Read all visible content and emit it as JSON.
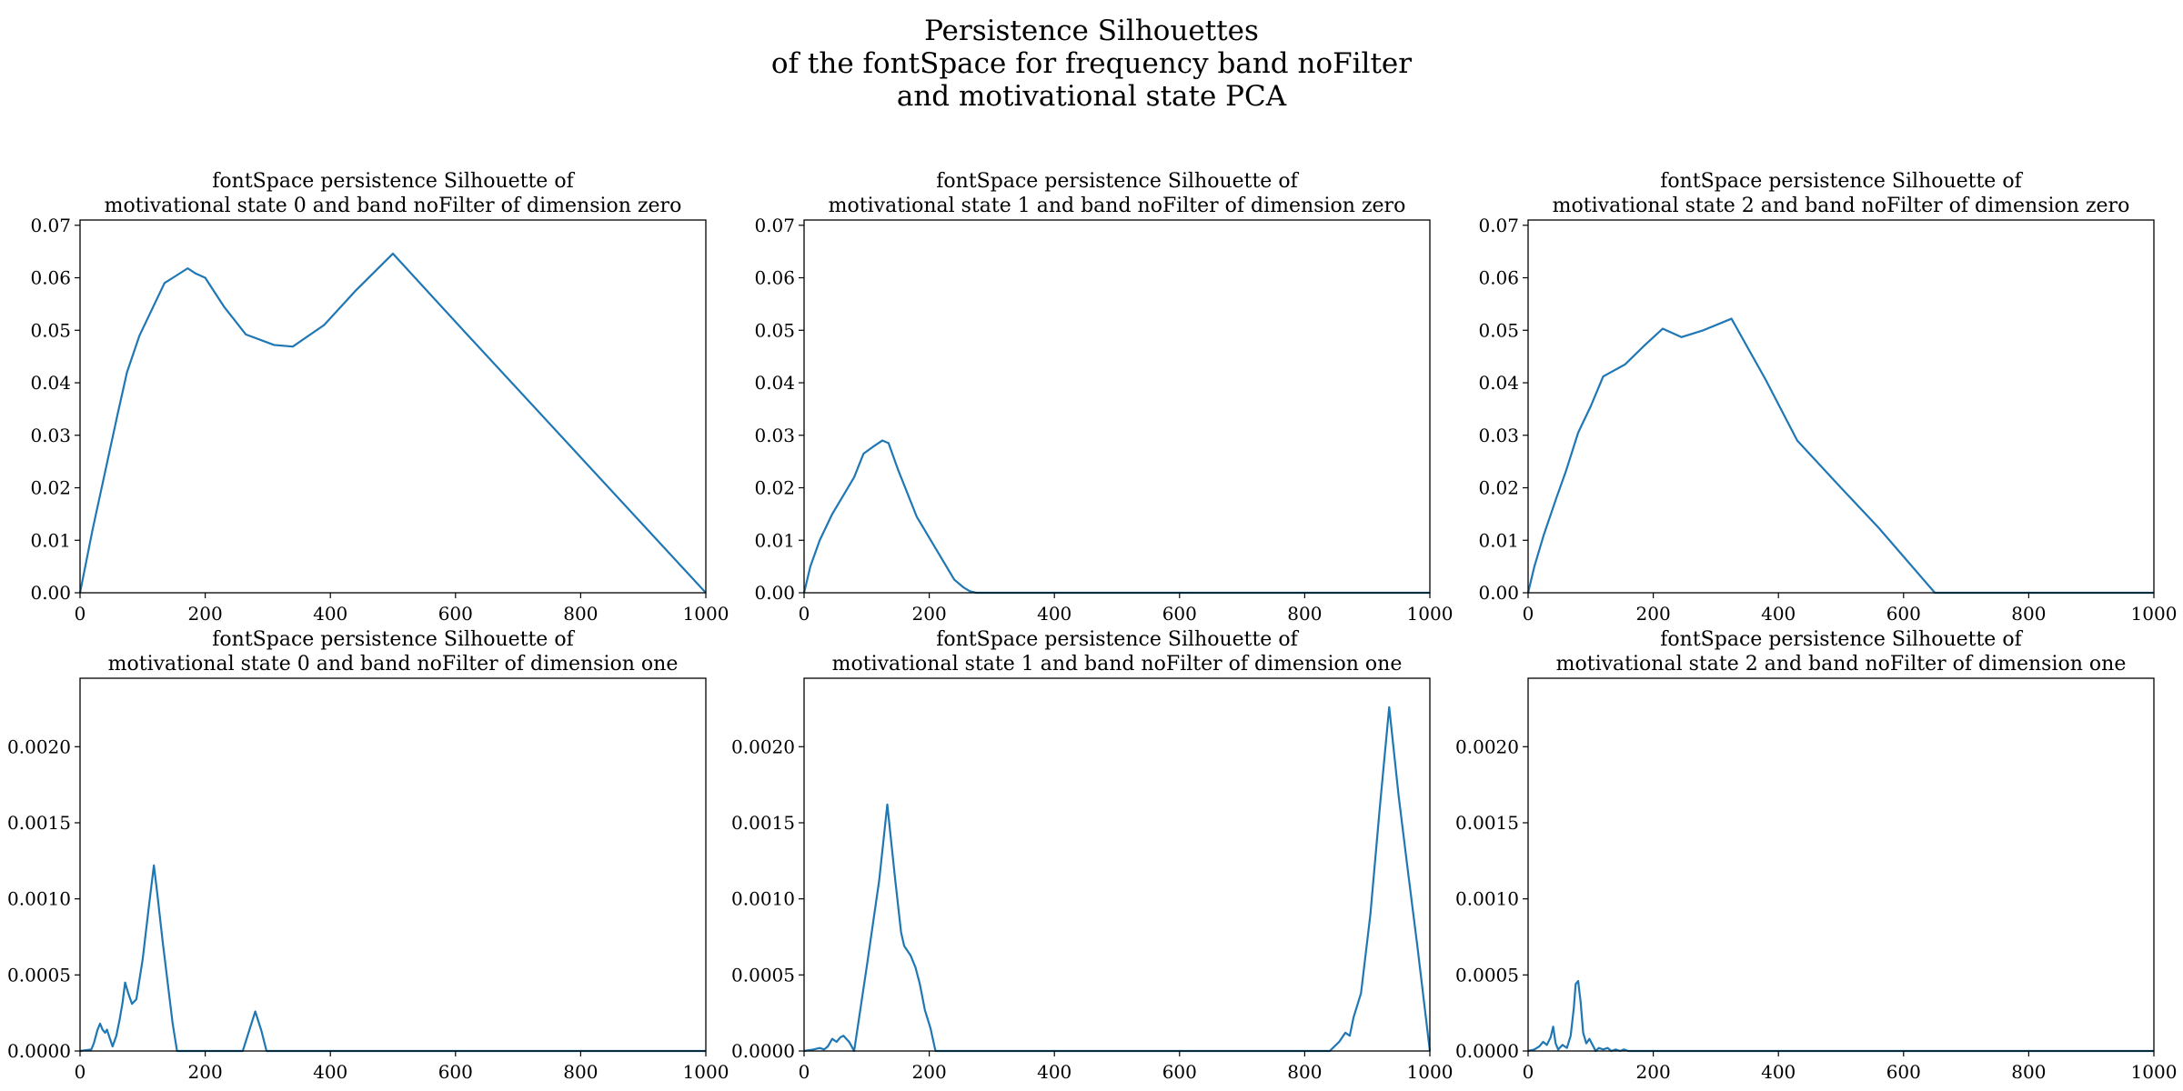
{
  "figure": {
    "title_lines": [
      "Persistence Silhouettes",
      "of the fontSpace for frequency band noFilter",
      "and motivational state PCA"
    ]
  },
  "colors": {
    "line": "#1f77b4",
    "axes": "#000000",
    "background": "#ffffff"
  },
  "chart_data": [
    {
      "type": "line",
      "title_lines": [
        "fontSpace persistence Silhouette of",
        "motivational state 0 and band noFilter of dimension zero"
      ],
      "xlabel": "",
      "ylabel": "",
      "xlim": [
        0,
        1000
      ],
      "ylim": [
        0,
        0.071
      ],
      "xticks": [
        "0",
        "200",
        "400",
        "600",
        "800",
        "1000"
      ],
      "yticks": [
        "0.00",
        "0.01",
        "0.02",
        "0.03",
        "0.04",
        "0.05",
        "0.06",
        "0.07"
      ],
      "grid": false,
      "series": [
        {
          "x": [
            0,
            20,
            40,
            60,
            75,
            95,
            115,
            135,
            155,
            172,
            185,
            200,
            230,
            265,
            310,
            340,
            390,
            440,
            500,
            550,
            600,
            700,
            800,
            900,
            1000
          ],
          "y": [
            0,
            0.012,
            0.023,
            0.034,
            0.042,
            0.049,
            0.054,
            0.059,
            0.0605,
            0.0618,
            0.0608,
            0.06,
            0.0545,
            0.0492,
            0.0472,
            0.0469,
            0.051,
            0.0575,
            0.0646,
            0.0581,
            0.0516,
            0.0387,
            0.0258,
            0.0129,
            0
          ]
        }
      ]
    },
    {
      "type": "line",
      "title_lines": [
        "fontSpace persistence Silhouette of",
        "motivational state 1 and band noFilter of dimension zero"
      ],
      "xlabel": "",
      "ylabel": "",
      "xlim": [
        0,
        1000
      ],
      "ylim": [
        0,
        0.071
      ],
      "xticks": [
        "0",
        "200",
        "400",
        "600",
        "800",
        "1000"
      ],
      "yticks": [
        "0.00",
        "0.01",
        "0.02",
        "0.03",
        "0.04",
        "0.05",
        "0.06",
        "0.07"
      ],
      "grid": false,
      "series": [
        {
          "x": [
            0,
            10,
            25,
            45,
            65,
            80,
            95,
            110,
            125,
            135,
            150,
            180,
            210,
            240,
            255,
            265,
            275,
            350,
            500,
            700,
            1000
          ],
          "y": [
            0,
            0.005,
            0.01,
            0.015,
            0.019,
            0.022,
            0.0265,
            0.0278,
            0.029,
            0.0285,
            0.0235,
            0.0145,
            0.0085,
            0.0025,
            0.001,
            0.0003,
            0,
            0,
            0,
            0,
            0
          ]
        }
      ]
    },
    {
      "type": "line",
      "title_lines": [
        "fontSpace persistence Silhouette of",
        "motivational state 2 and band noFilter of dimension zero"
      ],
      "xlabel": "",
      "ylabel": "",
      "xlim": [
        0,
        1000
      ],
      "ylim": [
        0,
        0.071
      ],
      "xticks": [
        "0",
        "200",
        "400",
        "600",
        "800",
        "1000"
      ],
      "yticks": [
        "0.00",
        "0.01",
        "0.02",
        "0.03",
        "0.04",
        "0.05",
        "0.06",
        "0.07"
      ],
      "grid": false,
      "series": [
        {
          "x": [
            0,
            10,
            25,
            45,
            60,
            80,
            100,
            120,
            155,
            185,
            215,
            245,
            280,
            325,
            380,
            430,
            500,
            560,
            650,
            700,
            800,
            1000
          ],
          "y": [
            0,
            0.005,
            0.011,
            0.018,
            0.023,
            0.0305,
            0.0355,
            0.0412,
            0.0435,
            0.047,
            0.0503,
            0.0487,
            0.05,
            0.0522,
            0.0405,
            0.029,
            0.02,
            0.0124,
            0,
            0,
            0,
            0
          ]
        }
      ]
    },
    {
      "type": "line",
      "title_lines": [
        "fontSpace persistence Silhouette of",
        "motivational state 0 and band noFilter of dimension one"
      ],
      "xlabel": "",
      "ylabel": "",
      "xlim": [
        0,
        1000
      ],
      "ylim": [
        0,
        0.00245
      ],
      "xticks": [
        "0",
        "200",
        "400",
        "600",
        "800",
        "1000"
      ],
      "yticks": [
        "0.0000",
        "0.0005",
        "0.0010",
        "0.0015",
        "0.0020"
      ],
      "grid": false,
      "series": [
        {
          "x": [
            0,
            18,
            22,
            28,
            32,
            36,
            40,
            43,
            47,
            52,
            58,
            63,
            68,
            72,
            77,
            83,
            90,
            100,
            110,
            118,
            123,
            132,
            140,
            148,
            155,
            170,
            210,
            260,
            270,
            280,
            290,
            298,
            350,
            500,
            700,
            1000
          ],
          "y": [
            0,
            1e-05,
            5e-05,
            0.00014,
            0.00018,
            0.00014,
            0.00012,
            0.00014,
            9e-05,
            3e-05,
            0.0001,
            0.0002,
            0.00032,
            0.00045,
            0.00038,
            0.00031,
            0.00034,
            0.0006,
            0.00095,
            0.00122,
            0.00105,
            0.00072,
            0.00045,
            0.00018,
            0,
            0,
            0,
            0,
            0.00013,
            0.00026,
            0.00013,
            0,
            0,
            0,
            0,
            0
          ]
        }
      ]
    },
    {
      "type": "line",
      "title_lines": [
        "fontSpace persistence Silhouette of",
        "motivational state 1 and band noFilter of dimension one"
      ],
      "xlabel": "",
      "ylabel": "",
      "xlim": [
        0,
        1000
      ],
      "ylim": [
        0,
        0.00245
      ],
      "xticks": [
        "0",
        "200",
        "400",
        "600",
        "800",
        "1000"
      ],
      "yticks": [
        "0.0000",
        "0.0005",
        "0.0010",
        "0.0015",
        "0.0020"
      ],
      "grid": false,
      "series": [
        {
          "x": [
            0,
            15,
            25,
            32,
            38,
            45,
            52,
            58,
            63,
            72,
            80,
            100,
            120,
            133,
            145,
            155,
            160,
            170,
            178,
            185,
            193,
            202,
            210,
            300,
            500,
            700,
            840,
            855,
            865,
            872,
            878,
            890,
            905,
            920,
            935,
            950,
            965,
            980,
            1000
          ],
          "y": [
            0,
            1e-05,
            2e-05,
            1e-05,
            3e-05,
            8e-05,
            6e-05,
            9e-05,
            0.0001,
            6e-05,
            0,
            0.00055,
            0.00112,
            0.00162,
            0.00115,
            0.00078,
            0.00069,
            0.00063,
            0.00055,
            0.00044,
            0.00027,
            0.00015,
            0,
            0,
            0,
            0,
            0,
            6e-05,
            0.00012,
            0.0001,
            0.00022,
            0.00038,
            0.0009,
            0.0016,
            0.00226,
            0.00168,
            0.00118,
            0.00069,
            0
          ]
        }
      ]
    },
    {
      "type": "line",
      "title_lines": [
        "fontSpace persistence Silhouette of",
        "motivational state 2 and band noFilter of dimension one"
      ],
      "xlabel": "",
      "ylabel": "",
      "xlim": [
        0,
        1000
      ],
      "ylim": [
        0,
        0.00245
      ],
      "xticks": [
        "0",
        "200",
        "400",
        "600",
        "800",
        "1000"
      ],
      "yticks": [
        "0.0000",
        "0.0005",
        "0.0010",
        "0.0015",
        "0.0020"
      ],
      "grid": false,
      "series": [
        {
          "x": [
            0,
            10,
            18,
            24,
            30,
            36,
            40,
            44,
            48,
            55,
            62,
            68,
            73,
            76,
            80,
            84,
            88,
            93,
            98,
            103,
            108,
            113,
            120,
            127,
            133,
            140,
            147,
            153,
            160,
            300,
            600,
            1000
          ],
          "y": [
            0,
            1e-05,
            3e-05,
            6e-05,
            4e-05,
            9e-05,
            0.00016,
            5e-05,
            1e-05,
            4e-05,
            2e-05,
            0.0001,
            0.00028,
            0.00044,
            0.00046,
            0.00032,
            0.00012,
            5e-05,
            8e-05,
            4e-05,
            0,
            2e-05,
            1e-05,
            2e-05,
            0,
            1e-05,
            0,
            1e-05,
            0,
            0,
            0,
            0
          ]
        }
      ]
    }
  ]
}
